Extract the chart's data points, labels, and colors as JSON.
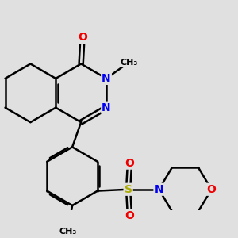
{
  "background_color": "#e0e0e0",
  "bond_color": "#000000",
  "bond_width": 1.8,
  "atom_colors": {
    "N": "#0000ee",
    "O": "#ee0000",
    "S": "#aaaa00",
    "C": "#000000"
  },
  "figsize": [
    3.0,
    3.0
  ],
  "dpi": 100
}
